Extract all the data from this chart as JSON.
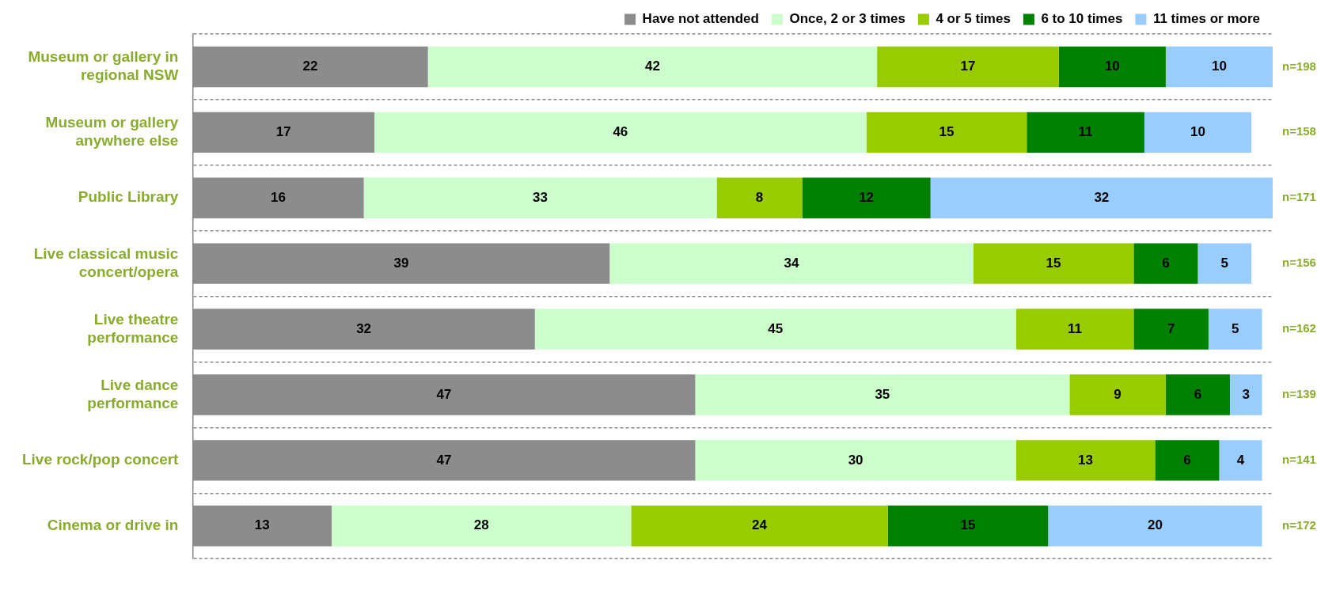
{
  "chart_data": {
    "type": "bar",
    "orientation": "horizontal",
    "stacked": true,
    "data_labels": true,
    "legend": "top",
    "grid": "y",
    "tick_labels": "y",
    "xlim": [
      0,
      101
    ],
    "categories": [
      "Museum or gallery in regional NSW",
      "Museum or gallery anywhere else",
      "Public Library",
      "Live classical music concert/opera",
      "Live theatre performance",
      "Live dance performance",
      "Live rock/pop concert",
      "Cinema or drive in"
    ],
    "series": [
      {
        "name": "Have not attended",
        "color": "#8c8c8c",
        "values": [
          22,
          17,
          16,
          39,
          32,
          47,
          47,
          13
        ]
      },
      {
        "name": "Once, 2 or 3 times",
        "color": "#ccffcc",
        "values": [
          42,
          46,
          33,
          34,
          45,
          35,
          30,
          28
        ]
      },
      {
        "name": "4 or 5 times",
        "color": "#99cc00",
        "values": [
          17,
          15,
          8,
          15,
          11,
          9,
          13,
          24
        ]
      },
      {
        "name": "6 to 10 times",
        "color": "#008000",
        "values": [
          10,
          11,
          12,
          6,
          7,
          6,
          6,
          15
        ]
      },
      {
        "name": "11 times or more",
        "color": "#99ccff",
        "values": [
          10,
          10,
          32,
          5,
          5,
          3,
          4,
          20
        ]
      }
    ],
    "annotations": [
      "n=198",
      "n=158",
      "n=171",
      "n=156",
      "n=162",
      "n=139",
      "n=141",
      "n=172"
    ]
  }
}
